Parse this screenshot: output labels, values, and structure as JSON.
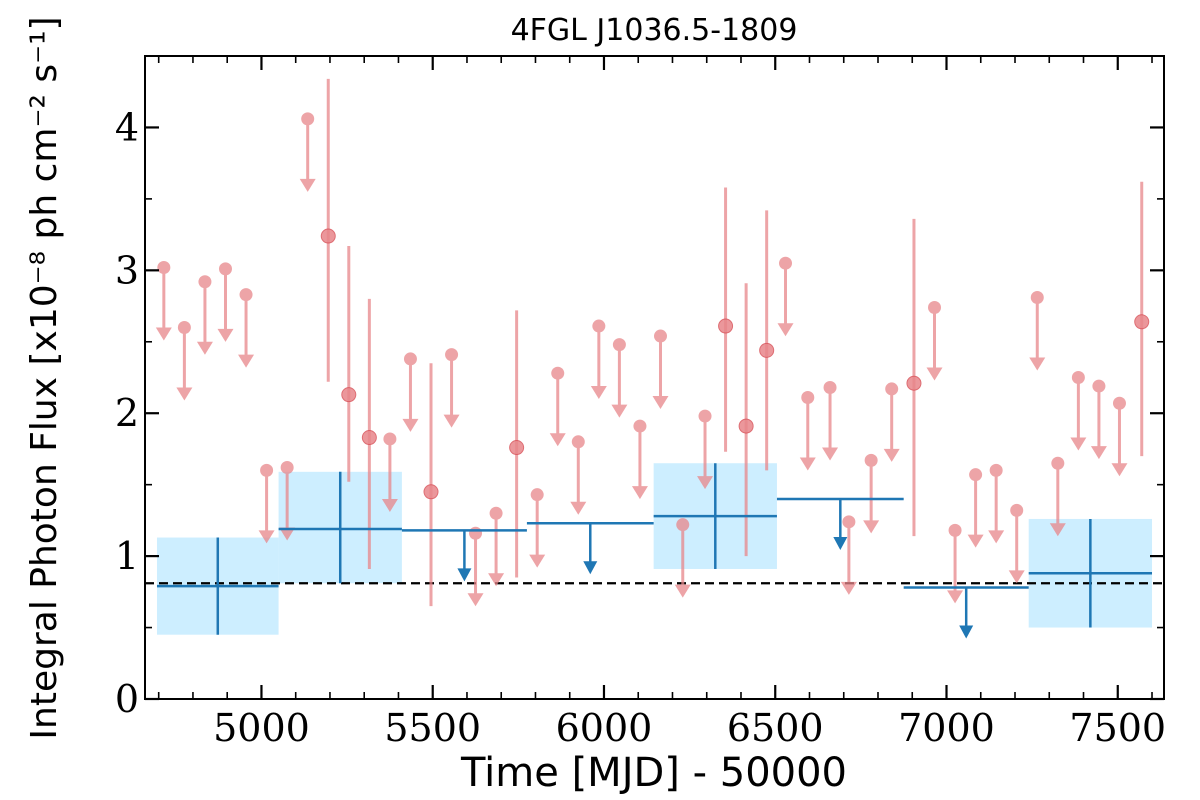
{
  "chart_data": {
    "type": "scatter",
    "title": "4FGL J1036.5-1809",
    "xlabel": "Time [MJD] - 50000",
    "ylabel": "Integral Photon Flux [x10⁻⁸ ph cm⁻² s⁻¹]",
    "xlim": [
      4660,
      7635
    ],
    "ylim": [
      0,
      4.5
    ],
    "x_ticks": [
      5000,
      5500,
      6000,
      6500,
      7000,
      7500
    ],
    "x_tick_labels": [
      "5000",
      "5500",
      "6000",
      "6500",
      "7000",
      "7500"
    ],
    "y_ticks": [
      0,
      1,
      2,
      3,
      4
    ],
    "y_tick_labels": [
      "0",
      "1",
      "2",
      "3",
      "4"
    ],
    "reference_line": {
      "y": 0.81,
      "style": "dashed",
      "color": "#000000"
    },
    "colors": {
      "fine_bins": "#e8868a",
      "coarse_bins": "#1f77b4",
      "coarse_band": "#cdeeff"
    },
    "series": [
      {
        "kind": "fine_upper_limits",
        "points": [
          {
            "x": 4715,
            "y": 3.02
          },
          {
            "x": 4775,
            "y": 2.6
          },
          {
            "x": 4835,
            "y": 2.92
          },
          {
            "x": 4895,
            "y": 3.01
          },
          {
            "x": 4955,
            "y": 2.83
          },
          {
            "x": 5015,
            "y": 1.6
          },
          {
            "x": 5075,
            "y": 1.62
          },
          {
            "x": 5135,
            "y": 4.06
          },
          {
            "x": 5375,
            "y": 1.82
          },
          {
            "x": 5435,
            "y": 2.38
          },
          {
            "x": 5555,
            "y": 2.41
          },
          {
            "x": 5625,
            "y": 1.16
          },
          {
            "x": 5685,
            "y": 1.3
          },
          {
            "x": 5805,
            "y": 1.43
          },
          {
            "x": 5865,
            "y": 2.28
          },
          {
            "x": 5925,
            "y": 1.8
          },
          {
            "x": 5985,
            "y": 2.61
          },
          {
            "x": 6045,
            "y": 2.48
          },
          {
            "x": 6105,
            "y": 1.91
          },
          {
            "x": 6165,
            "y": 2.54
          },
          {
            "x": 6230,
            "y": 1.22
          },
          {
            "x": 6295,
            "y": 1.98
          },
          {
            "x": 6530,
            "y": 3.05
          },
          {
            "x": 6595,
            "y": 2.11
          },
          {
            "x": 6660,
            "y": 2.18
          },
          {
            "x": 6715,
            "y": 1.24
          },
          {
            "x": 6780,
            "y": 1.67
          },
          {
            "x": 6840,
            "y": 2.17
          },
          {
            "x": 6965,
            "y": 2.74
          },
          {
            "x": 7025,
            "y": 1.18
          },
          {
            "x": 7085,
            "y": 1.57
          },
          {
            "x": 7145,
            "y": 1.6
          },
          {
            "x": 7205,
            "y": 1.32
          },
          {
            "x": 7265,
            "y": 2.81
          },
          {
            "x": 7325,
            "y": 1.65
          },
          {
            "x": 7385,
            "y": 2.25
          },
          {
            "x": 7445,
            "y": 2.19
          },
          {
            "x": 7505,
            "y": 2.07
          }
        ]
      },
      {
        "kind": "fine_detections",
        "points": [
          {
            "x": 5195,
            "y": 3.24,
            "low": 2.22,
            "high": 4.34
          },
          {
            "x": 5255,
            "y": 2.13,
            "low": 1.52,
            "high": 3.17
          },
          {
            "x": 5315,
            "y": 1.83,
            "low": 0.91,
            "high": 2.8
          },
          {
            "x": 5495,
            "y": 1.45,
            "low": 0.65,
            "high": 2.35
          },
          {
            "x": 5745,
            "y": 1.76,
            "low": 0.85,
            "high": 2.72
          },
          {
            "x": 6355,
            "y": 2.61,
            "low": 1.73,
            "high": 3.58
          },
          {
            "x": 6415,
            "y": 1.91,
            "low": 1.0,
            "high": 2.91
          },
          {
            "x": 6475,
            "y": 2.44,
            "low": 1.6,
            "high": 3.42
          },
          {
            "x": 6905,
            "y": 2.21,
            "low": 1.14,
            "high": 3.36
          },
          {
            "x": 7570,
            "y": 2.64,
            "low": 1.7,
            "high": 3.62
          }
        ]
      },
      {
        "kind": "coarse_detections",
        "bins": [
          {
            "x0": 4695,
            "x1": 5050,
            "y": 0.79,
            "low": 0.45,
            "high": 1.13
          },
          {
            "x0": 5050,
            "x1": 5410,
            "y": 1.19,
            "low": 0.81,
            "high": 1.59
          },
          {
            "x0": 6145,
            "x1": 6505,
            "y": 1.28,
            "low": 0.91,
            "high": 1.65
          },
          {
            "x0": 7240,
            "x1": 7600,
            "y": 0.88,
            "low": 0.5,
            "high": 1.26
          }
        ]
      },
      {
        "kind": "coarse_upper_limits",
        "bins": [
          {
            "x0": 5410,
            "x1": 5775,
            "y": 1.18
          },
          {
            "x0": 5775,
            "x1": 6145,
            "y": 1.23
          },
          {
            "x0": 6505,
            "x1": 6875,
            "y": 1.4
          },
          {
            "x0": 6875,
            "x1": 7240,
            "y": 0.78
          }
        ]
      }
    ]
  }
}
